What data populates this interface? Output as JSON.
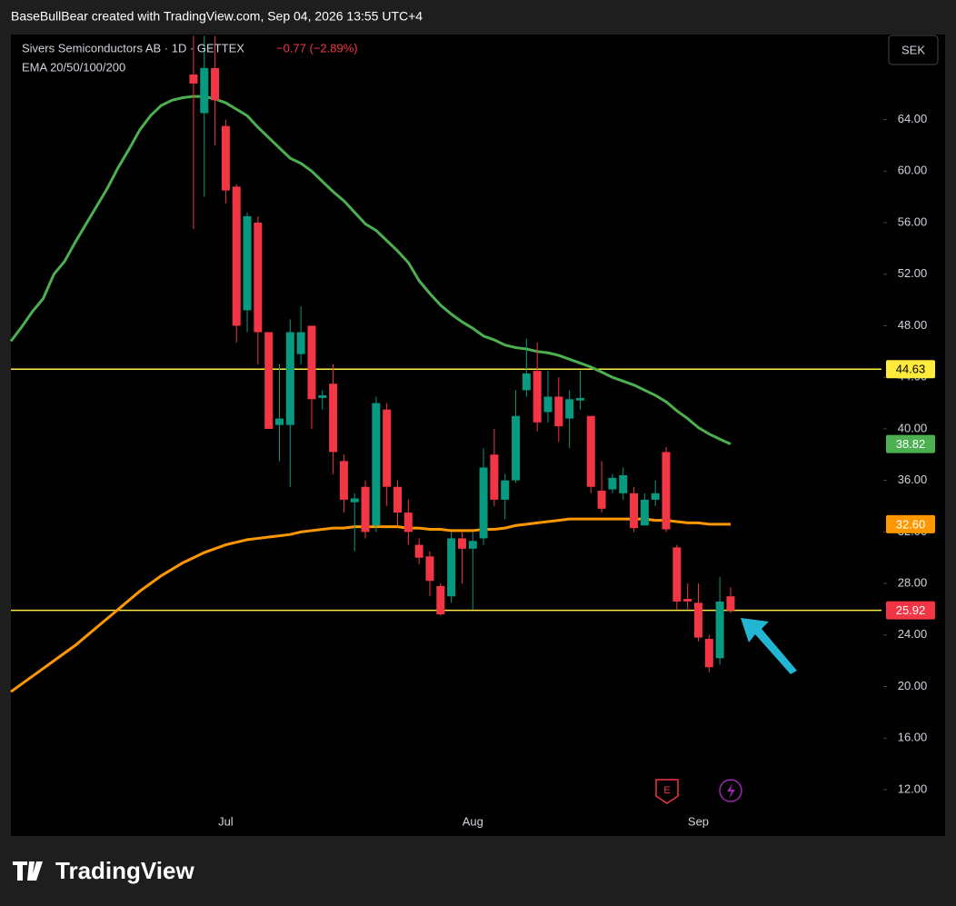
{
  "header": {
    "caption": "BaseBullBear created with TradingView.com, Sep 04, 2026 13:55 UTC+4"
  },
  "chart_data": {
    "type": "candlestick",
    "title": "Sivers Semiconductors AB · 1D · GETTEX",
    "change": "−0.77 (−2.89%)",
    "indicator": "EMA 20/50/100/200",
    "currency": "SEK",
    "up_color": "#089981",
    "down_color": "#f23645",
    "categories": [
      null,
      null,
      null,
      null,
      null,
      null,
      null,
      null,
      null,
      null,
      null,
      null,
      null,
      null,
      null,
      null,
      null,
      null,
      null,
      null,
      "Jul",
      null,
      null,
      null,
      null,
      null,
      null,
      null,
      null,
      null,
      null,
      null,
      null,
      null,
      null,
      null,
      null,
      null,
      null,
      null,
      null,
      null,
      null,
      "Aug",
      null,
      null,
      null,
      null,
      null,
      null,
      null,
      null,
      null,
      null,
      null,
      null,
      null,
      null,
      null,
      null,
      null,
      null,
      null,
      null,
      "Sep",
      null,
      null,
      null
    ],
    "open": [
      null,
      null,
      null,
      null,
      null,
      null,
      null,
      null,
      null,
      null,
      null,
      null,
      null,
      null,
      null,
      null,
      null,
      67.5,
      64.5,
      68,
      63.5,
      58.8,
      49.2,
      56,
      47.5,
      40.3,
      40.3,
      45.8,
      48,
      42.4,
      43.5,
      37.5,
      34.3,
      35.5,
      32.5,
      41.5,
      35.5,
      33.5,
      31,
      30.1,
      27.8,
      27,
      31.5,
      30.7,
      31.5,
      38,
      34.5,
      36,
      43,
      44.5,
      41.3,
      42.5,
      40.8,
      42.2,
      41,
      35.2,
      35.3,
      35,
      35,
      32.5,
      34.5,
      38.2,
      30.8,
      26.8,
      26.5,
      23.7,
      22.2,
      27
    ],
    "high": [
      null,
      null,
      null,
      null,
      null,
      null,
      null,
      null,
      null,
      null,
      null,
      null,
      null,
      null,
      null,
      null,
      null,
      70.5,
      70.5,
      70.5,
      64,
      59,
      56.8,
      56.5,
      47.5,
      45,
      48.5,
      49.5,
      48,
      43,
      45,
      38,
      35,
      36,
      42.5,
      42,
      36,
      34.5,
      31.5,
      30.5,
      28,
      32,
      32,
      32,
      38.5,
      40,
      36.5,
      43,
      47,
      46.7,
      44.5,
      44,
      43,
      44.5,
      41,
      37.5,
      36.5,
      37,
      35.5,
      35,
      36,
      38.6,
      31,
      28,
      28,
      24,
      28.5,
      27.7
    ],
    "low": [
      null,
      null,
      null,
      null,
      null,
      null,
      null,
      null,
      null,
      null,
      null,
      null,
      null,
      null,
      null,
      null,
      null,
      55.5,
      58,
      62,
      57.5,
      46.7,
      47.5,
      45,
      40,
      37.5,
      35.5,
      45,
      40,
      41.5,
      36.5,
      33.5,
      30.5,
      31.5,
      32,
      34,
      32.5,
      31,
      29.5,
      27,
      25.5,
      26.5,
      28,
      26,
      31,
      34,
      33,
      35.8,
      42.5,
      39.8,
      40.5,
      39,
      38.5,
      41.5,
      35,
      33.5,
      35,
      34.5,
      32,
      32.5,
      34,
      32,
      26,
      26,
      23.5,
      21.1,
      21.7,
      25.7
    ],
    "close": [
      null,
      null,
      null,
      null,
      null,
      null,
      null,
      null,
      null,
      null,
      null,
      null,
      null,
      null,
      null,
      null,
      null,
      66.8,
      68,
      65.5,
      58.5,
      48,
      56.5,
      47.5,
      40,
      40.8,
      47.5,
      47.5,
      42.3,
      42.6,
      38.2,
      34.5,
      34.6,
      32,
      42,
      35.5,
      33.5,
      32,
      30,
      28.2,
      25.6,
      31.5,
      30.7,
      31.3,
      37,
      34.5,
      36,
      41,
      44.3,
      40.5,
      42.5,
      40.2,
      42.3,
      42.4,
      35.5,
      33.8,
      36.2,
      36.4,
      32.3,
      34.5,
      35,
      32.2,
      26.6,
      26.6,
      23.8,
      21.5,
      26.6,
      25.9
    ],
    "series": [
      {
        "color": "#4caf50",
        "values": [
          46.8,
          47.9,
          49.1,
          50.1,
          52.0,
          53.0,
          54.5,
          55.9,
          57.3,
          58.7,
          60.3,
          61.7,
          63.2,
          64.3,
          65.1,
          65.5,
          65.7,
          65.8,
          65.8,
          65.6,
          65.3,
          64.8,
          64.3,
          63.4,
          62.6,
          61.8,
          61.0,
          60.6,
          60.0,
          59.2,
          58.4,
          57.7,
          56.8,
          55.9,
          55.4,
          54.6,
          53.8,
          52.9,
          51.5,
          50.5,
          49.6,
          48.9,
          48.3,
          47.8,
          47.2,
          46.9,
          46.5,
          46.3,
          46.2,
          46.0,
          45.9,
          45.7,
          45.4,
          45.1,
          44.8,
          44.4,
          44.0,
          43.7,
          43.4,
          43.0,
          42.6,
          42.1,
          41.4,
          40.8,
          40.1,
          39.6,
          39.2,
          38.82
        ]
      },
      {
        "color": "#ff9800",
        "values": [
          19.6,
          20.2,
          20.8,
          21.4,
          22.0,
          22.6,
          23.2,
          23.9,
          24.6,
          25.3,
          26.0,
          26.7,
          27.4,
          28.0,
          28.6,
          29.1,
          29.6,
          30.0,
          30.4,
          30.7,
          31.0,
          31.2,
          31.4,
          31.5,
          31.6,
          31.7,
          31.8,
          32.0,
          32.1,
          32.2,
          32.3,
          32.3,
          32.4,
          32.4,
          32.4,
          32.4,
          32.4,
          32.3,
          32.3,
          32.2,
          32.2,
          32.1,
          32.1,
          32.1,
          32.2,
          32.2,
          32.3,
          32.5,
          32.6,
          32.7,
          32.8,
          32.9,
          33.0,
          33.0,
          33.0,
          33.0,
          33.0,
          33.0,
          33.0,
          33.0,
          32.9,
          32.9,
          32.8,
          32.7,
          32.7,
          32.6,
          32.6,
          32.6
        ]
      }
    ],
    "levels": [
      {
        "value": 44.63,
        "color": "#ffeb3b"
      },
      {
        "value": 25.92,
        "color": "#ffeb3b"
      }
    ],
    "price_labels": [
      {
        "value": 44.63,
        "label": "44.63",
        "color": "#ffeb3b"
      },
      {
        "value": 38.82,
        "label": "38.82",
        "color": "#4caf50"
      },
      {
        "value": 32.6,
        "label": "32.60",
        "color": "#ff9800"
      },
      {
        "value": 25.92,
        "label": "25.92",
        "color": "#f23645"
      }
    ],
    "ylim": [
      8.4,
      70.6
    ],
    "yticks": [
      {
        "value": 12,
        "label": "12.00"
      },
      {
        "value": 16,
        "label": "16.00"
      },
      {
        "value": 20,
        "label": "20.00"
      },
      {
        "value": 24,
        "label": "24.00"
      },
      {
        "value": 28,
        "label": "28.00"
      },
      {
        "value": 32,
        "label": "32.00"
      },
      {
        "value": 36,
        "label": "36.00"
      },
      {
        "value": 40,
        "label": "40.00"
      },
      {
        "value": 44,
        "label": "44.00"
      },
      {
        "value": 48,
        "label": "48.00"
      },
      {
        "value": 52,
        "label": "52.00"
      },
      {
        "value": 56,
        "label": "56.00"
      },
      {
        "value": 60,
        "label": "60.00"
      },
      {
        "value": 64,
        "label": "64.00"
      }
    ],
    "grid": false
  },
  "footer": {
    "brand": "TradingView"
  }
}
